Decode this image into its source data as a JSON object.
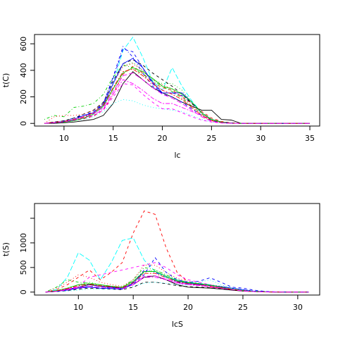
{
  "chart_data": [
    {
      "type": "line",
      "xlabel": "lc",
      "ylabel": "t(C)",
      "xlim": [
        7,
        36
      ],
      "ylim": [
        -20,
        670
      ],
      "xticks": [
        10,
        15,
        20,
        25,
        30,
        35
      ],
      "yticks": [
        0,
        200,
        400,
        600
      ],
      "grid": false,
      "legend": "none",
      "x": [
        8,
        9,
        10,
        11,
        12,
        13,
        14,
        15,
        16,
        17,
        18,
        19,
        20,
        21,
        22,
        23,
        24,
        25,
        26,
        27,
        28,
        29,
        30,
        31,
        32,
        33,
        34,
        35
      ],
      "series": [
        {
          "color": "#000000",
          "dash": "solid",
          "values": [
            0,
            0,
            5,
            10,
            20,
            30,
            60,
            150,
            300,
            390,
            330,
            270,
            230,
            200,
            160,
            130,
            100,
            100,
            30,
            25,
            0,
            0,
            0,
            0,
            0,
            0,
            0,
            0
          ]
        },
        {
          "color": "#ff0000",
          "dash": "dashed",
          "values": [
            0,
            10,
            15,
            20,
            35,
            55,
            100,
            220,
            370,
            430,
            380,
            310,
            270,
            250,
            200,
            150,
            90,
            40,
            15,
            5,
            0,
            0,
            0,
            0,
            0,
            0,
            0,
            0
          ]
        },
        {
          "color": "#00cd00",
          "dash": "dotted",
          "values": [
            0,
            5,
            20,
            30,
            50,
            80,
            160,
            300,
            430,
            460,
            400,
            330,
            300,
            300,
            250,
            160,
            80,
            30,
            10,
            3,
            0,
            0,
            0,
            0,
            0,
            0,
            0,
            0
          ]
        },
        {
          "color": "#0000ff",
          "dash": "dotdash",
          "values": [
            0,
            10,
            20,
            40,
            60,
            80,
            150,
            350,
            580,
            500,
            380,
            280,
            230,
            230,
            210,
            150,
            80,
            30,
            10,
            3,
            0,
            0,
            0,
            0,
            0,
            0,
            0,
            0
          ]
        },
        {
          "color": "#00ffff",
          "dash": "longdash",
          "values": [
            0,
            5,
            15,
            25,
            40,
            70,
            130,
            300,
            550,
            650,
            500,
            320,
            250,
            420,
            280,
            170,
            80,
            30,
            10,
            3,
            0,
            0,
            0,
            0,
            0,
            0,
            0,
            0
          ]
        },
        {
          "color": "#ff00ff",
          "dash": "twodash",
          "values": [
            0,
            8,
            15,
            25,
            40,
            60,
            110,
            220,
            330,
            300,
            250,
            190,
            150,
            150,
            120,
            90,
            60,
            30,
            10,
            3,
            0,
            0,
            0,
            0,
            0,
            0,
            0,
            0
          ]
        },
        {
          "color": "#000000",
          "dash": "dashed",
          "values": [
            0,
            10,
            20,
            40,
            70,
            100,
            160,
            320,
            450,
            480,
            440,
            380,
            330,
            280,
            220,
            150,
            80,
            30,
            10,
            3,
            0,
            0,
            0,
            0,
            0,
            0,
            0,
            0
          ]
        },
        {
          "color": "#00cd00",
          "dash": "dotdash",
          "values": [
            30,
            60,
            50,
            120,
            130,
            150,
            220,
            350,
            440,
            420,
            370,
            320,
            280,
            240,
            190,
            130,
            70,
            25,
            8,
            2,
            0,
            0,
            0,
            0,
            0,
            0,
            0,
            0
          ]
        },
        {
          "color": "#ff0000",
          "dash": "dotted",
          "values": [
            0,
            50,
            60,
            60,
            70,
            100,
            150,
            300,
            430,
            450,
            400,
            330,
            290,
            260,
            200,
            130,
            70,
            25,
            8,
            2,
            0,
            0,
            0,
            0,
            0,
            0,
            0,
            0
          ]
        },
        {
          "color": "#0000ff",
          "dash": "solid",
          "values": [
            0,
            5,
            10,
            30,
            60,
            80,
            140,
            300,
            450,
            490,
            420,
            310,
            230,
            230,
            230,
            160,
            80,
            30,
            10,
            3,
            0,
            0,
            0,
            0,
            0,
            0,
            0,
            0
          ]
        },
        {
          "color": "#00ffff",
          "dash": "dotted",
          "values": [
            0,
            5,
            10,
            20,
            30,
            50,
            90,
            150,
            180,
            170,
            140,
            120,
            110,
            100,
            90,
            60,
            30,
            10,
            3,
            0,
            0,
            0,
            0,
            0,
            0,
            0,
            0,
            0
          ]
        },
        {
          "color": "#ff00ff",
          "dash": "dashed",
          "values": [
            0,
            5,
            10,
            20,
            40,
            60,
            100,
            200,
            300,
            290,
            220,
            160,
            110,
            110,
            80,
            50,
            25,
            10,
            3,
            0,
            0,
            0,
            0,
            0,
            0,
            0,
            0,
            0
          ]
        },
        {
          "color": "#00cd00",
          "dash": "solid",
          "values": [
            0,
            5,
            10,
            20,
            40,
            70,
            130,
            260,
            380,
            420,
            390,
            340,
            280,
            260,
            220,
            160,
            80,
            30,
            10,
            3,
            0,
            0,
            0,
            0,
            0,
            0,
            0,
            0
          ]
        },
        {
          "color": "#0000ff",
          "dash": "dashed",
          "values": [
            0,
            5,
            15,
            30,
            60,
            90,
            150,
            340,
            560,
            540,
            420,
            300,
            220,
            200,
            160,
            110,
            60,
            20,
            6,
            2,
            0,
            0,
            0,
            0,
            0,
            0,
            0,
            0
          ]
        },
        {
          "color": "#ff0000",
          "dash": "twodash",
          "values": [
            0,
            8,
            15,
            30,
            50,
            80,
            140,
            270,
            390,
            410,
            360,
            300,
            250,
            220,
            180,
            120,
            60,
            20,
            6,
            2,
            0,
            0,
            0,
            0,
            0,
            0,
            0,
            0
          ]
        },
        {
          "color": "#ff00ff",
          "dash": "longdash",
          "values": [
            0,
            5,
            12,
            25,
            45,
            75,
            120,
            240,
            360,
            380,
            330,
            270,
            220,
            190,
            150,
            100,
            50,
            15,
            4,
            1,
            0,
            0,
            0,
            0,
            0,
            0,
            0,
            0
          ]
        }
      ]
    },
    {
      "type": "line",
      "xlabel": "lcS",
      "ylabel": "t(S)",
      "xlim": [
        6,
        32
      ],
      "ylim": [
        -60,
        1800
      ],
      "xticks": [
        10,
        15,
        20,
        25,
        30
      ],
      "yticks": [
        0,
        500,
        1000
      ],
      "extra_ticks": [
        1500
      ],
      "grid": false,
      "legend": "none",
      "x": [
        7,
        8,
        9,
        10,
        11,
        12,
        13,
        14,
        15,
        16,
        17,
        18,
        19,
        20,
        21,
        22,
        23,
        24,
        25,
        26,
        27,
        28,
        29,
        30,
        31
      ],
      "series": [
        {
          "color": "#000000",
          "dash": "solid",
          "values": [
            0,
            20,
            50,
            100,
            150,
            120,
            100,
            80,
            150,
            300,
            330,
            250,
            150,
            100,
            90,
            80,
            60,
            40,
            20,
            10,
            5,
            2,
            0,
            0,
            0
          ]
        },
        {
          "color": "#ff0000",
          "dash": "dashed",
          "values": [
            0,
            50,
            150,
            300,
            450,
            250,
            400,
            600,
            1200,
            1650,
            1580,
            900,
            400,
            200,
            150,
            100,
            80,
            50,
            30,
            15,
            5,
            2,
            0,
            0,
            0
          ]
        },
        {
          "color": "#00cd00",
          "dash": "dotted",
          "values": [
            0,
            30,
            80,
            150,
            200,
            150,
            100,
            80,
            200,
            400,
            450,
            350,
            250,
            200,
            180,
            150,
            120,
            80,
            40,
            20,
            8,
            3,
            0,
            0,
            0
          ]
        },
        {
          "color": "#0000ff",
          "dash": "dotdash",
          "values": [
            0,
            20,
            50,
            100,
            150,
            120,
            100,
            80,
            200,
            450,
            400,
            300,
            200,
            150,
            150,
            130,
            100,
            80,
            50,
            20,
            8,
            3,
            0,
            0,
            0
          ]
        },
        {
          "color": "#00ffff",
          "dash": "longdash",
          "values": [
            0,
            50,
            300,
            800,
            650,
            250,
            600,
            1050,
            1100,
            650,
            420,
            300,
            250,
            200,
            180,
            150,
            100,
            60,
            30,
            15,
            5,
            2,
            0,
            0,
            0
          ]
        },
        {
          "color": "#ff00ff",
          "dash": "twodash",
          "values": [
            0,
            20,
            60,
            100,
            100,
            80,
            70,
            60,
            150,
            300,
            300,
            250,
            180,
            150,
            130,
            110,
            80,
            50,
            25,
            10,
            3,
            1,
            0,
            0,
            0
          ]
        },
        {
          "color": "#000000",
          "dash": "dashed",
          "values": [
            0,
            10,
            30,
            60,
            80,
            70,
            60,
            50,
            100,
            200,
            200,
            170,
            130,
            110,
            100,
            90,
            70,
            45,
            25,
            10,
            3,
            1,
            0,
            0,
            0
          ]
        },
        {
          "color": "#00cd00",
          "dash": "dotdash",
          "values": [
            0,
            100,
            250,
            200,
            180,
            150,
            120,
            100,
            250,
            500,
            450,
            350,
            250,
            200,
            150,
            120,
            90,
            60,
            30,
            12,
            4,
            1,
            0,
            0,
            0
          ]
        },
        {
          "color": "#ff0000",
          "dash": "dotted",
          "values": [
            0,
            80,
            200,
            350,
            300,
            200,
            150,
            120,
            250,
            550,
            550,
            400,
            280,
            220,
            180,
            140,
            100,
            60,
            30,
            12,
            4,
            1,
            0,
            0,
            0
          ]
        },
        {
          "color": "#0000ff",
          "dash": "solid",
          "values": [
            0,
            20,
            40,
            80,
            100,
            80,
            70,
            60,
            180,
            420,
            420,
            320,
            220,
            180,
            160,
            140,
            110,
            80,
            50,
            20,
            8,
            3,
            0,
            0,
            0
          ]
        },
        {
          "color": "#00ffff",
          "dash": "dotted",
          "values": [
            0,
            10,
            20,
            40,
            60,
            60,
            60,
            80,
            120,
            180,
            200,
            180,
            150,
            150,
            200,
            250,
            150,
            80,
            40,
            20,
            8,
            3,
            0,
            0,
            0
          ]
        },
        {
          "color": "#ff00ff",
          "dash": "dashed",
          "values": [
            0,
            20,
            60,
            120,
            300,
            350,
            400,
            450,
            500,
            550,
            600,
            500,
            350,
            250,
            200,
            150,
            100,
            60,
            30,
            12,
            4,
            1,
            0,
            0,
            0
          ]
        },
        {
          "color": "#00cd00",
          "dash": "solid",
          "values": [
            0,
            30,
            80,
            150,
            170,
            150,
            120,
            100,
            220,
            420,
            420,
            320,
            230,
            190,
            170,
            140,
            100,
            60,
            30,
            12,
            4,
            1,
            0,
            0,
            0
          ]
        },
        {
          "color": "#0000ff",
          "dash": "dashed",
          "values": [
            0,
            15,
            40,
            80,
            120,
            100,
            90,
            70,
            160,
            350,
            700,
            400,
            250,
            200,
            220,
            290,
            200,
            100,
            80,
            40,
            15,
            5,
            0,
            0,
            0
          ]
        },
        {
          "color": "#ff0000",
          "dash": "twodash",
          "values": [
            0,
            25,
            70,
            130,
            160,
            130,
            110,
            90,
            190,
            380,
            380,
            290,
            210,
            170,
            150,
            120,
            90,
            55,
            28,
            12,
            4,
            1,
            0,
            0,
            0
          ]
        },
        {
          "color": "#ff00ff",
          "dash": "longdash",
          "values": [
            0,
            15,
            45,
            90,
            120,
            100,
            85,
            70,
            150,
            320,
            330,
            260,
            190,
            160,
            140,
            115,
            85,
            50,
            25,
            10,
            3,
            1,
            0,
            0,
            0
          ]
        }
      ]
    }
  ]
}
